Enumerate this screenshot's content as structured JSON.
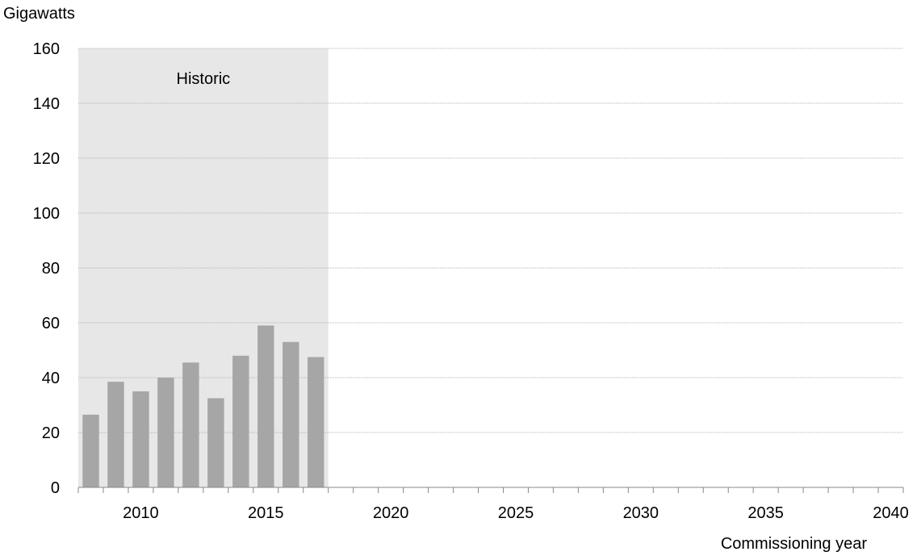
{
  "chart_data": {
    "type": "bar",
    "ylabel": "Gigawatts",
    "xlabel": "Commissioning year",
    "ylim": [
      0,
      160
    ],
    "yticks": [
      0,
      20,
      40,
      60,
      80,
      100,
      120,
      140,
      160
    ],
    "xlim": [
      2007.5,
      2040.5
    ],
    "xtick_labels": [
      2010,
      2015,
      2020,
      2025,
      2030,
      2035,
      2040
    ],
    "grid": true,
    "shaded_region": {
      "label": "Historic",
      "from": 2007.5,
      "to": 2017.5
    },
    "categories": [
      2008,
      2009,
      2010,
      2011,
      2012,
      2013,
      2014,
      2015,
      2016,
      2017
    ],
    "values": [
      26.5,
      38.5,
      35,
      40,
      45.5,
      32.5,
      48,
      59,
      53,
      47.5
    ],
    "colors": {
      "bar": "#a6a6a6",
      "shade": "#e7e7e7",
      "grid": "#b3b3b3",
      "axis": "#888888"
    }
  }
}
